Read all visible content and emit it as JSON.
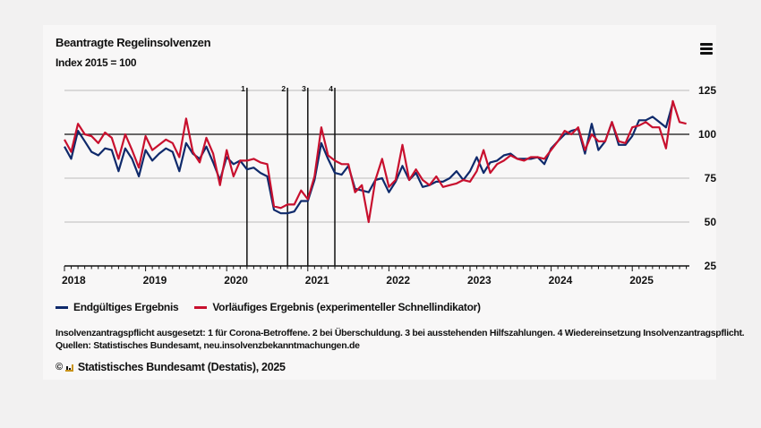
{
  "header": {
    "title": "Beantragte Regelinsolvenzen",
    "subtitle": "Index 2015 = 100",
    "menu_icon": "hamburger-menu-icon"
  },
  "legend": [
    {
      "label": "Endgültiges Ergebnis",
      "color": "#0f2a6b"
    },
    {
      "label": "Vorläufiges Ergebnis (experimenteller Schnellindikator)",
      "color": "#c8102e"
    }
  ],
  "footer": {
    "note": "Insolvenzantragspflicht ausgesetzt: 1 für Corona-Betroffene. 2 bei Überschuldung. 3 bei ausstehenden Hilfszahlungen. 4 Wiedereinsetzung Insolvenzantragspflicht.",
    "sources": "Quellen: Statistisches Bundesamt, neu.insolvenzbekanntmachungen.de",
    "copyright_symbol": "©",
    "copyright": "Statistisches Bundesamt (Destatis), 2025"
  },
  "chart_data": {
    "type": "line",
    "title": "Beantragte Regelinsolvenzen",
    "subtitle": "Index 2015 = 100",
    "xlabel": "",
    "ylabel": "",
    "x_start": "2018-01",
    "x_frequency": "monthly",
    "x_range": [
      "2018-01",
      "2025-10"
    ],
    "x_tick_labels": [
      "2018",
      "2019",
      "2020",
      "2021",
      "2022",
      "2023",
      "2024",
      "2025"
    ],
    "y_ticks": [
      25,
      50,
      75,
      100,
      125
    ],
    "ylim": [
      25,
      125
    ],
    "grid": true,
    "reference_line": 100,
    "y_axis_side": "right",
    "legend_position": "bottom-left",
    "annotations": [
      {
        "label": "1",
        "date": "2020-04"
      },
      {
        "label": "2",
        "date": "2020-10"
      },
      {
        "label": "3",
        "date": "2021-01"
      },
      {
        "label": "4",
        "date": "2021-05"
      }
    ],
    "series": [
      {
        "name": "Endgültiges Ergebnis",
        "color": "#0f2a6b",
        "values": [
          93,
          86,
          102,
          96,
          90,
          88,
          92,
          91,
          79,
          92,
          86,
          76,
          91,
          85,
          89,
          92,
          90,
          79,
          95,
          89,
          86,
          93,
          84,
          74,
          87,
          83,
          85,
          80,
          81,
          78,
          76,
          57,
          55,
          55,
          56,
          62,
          62,
          74,
          95,
          86,
          78,
          77,
          82,
          69,
          68,
          67,
          74,
          75,
          67,
          73,
          82,
          74,
          78,
          70,
          71,
          73,
          73,
          75,
          79,
          74,
          79,
          87,
          78,
          84,
          85,
          88,
          89,
          86,
          86,
          86,
          87,
          83,
          92,
          96,
          100,
          102,
          103,
          89,
          106,
          91,
          96,
          107,
          94,
          94,
          99,
          108,
          108,
          110,
          107,
          104,
          118
        ]
      },
      {
        "name": "Vorläufiges Ergebnis (experimenteller Schnellindikator)",
        "color": "#c8102e",
        "values": [
          97,
          90,
          106,
          100,
          99,
          95,
          101,
          98,
          86,
          100,
          91,
          81,
          99,
          91,
          94,
          97,
          95,
          87,
          109,
          90,
          84,
          98,
          89,
          71,
          91,
          76,
          85,
          85,
          86,
          84,
          83,
          59,
          58,
          60,
          60,
          68,
          63,
          76,
          104,
          88,
          85,
          83,
          83,
          67,
          71,
          50,
          74,
          86,
          70,
          74,
          94,
          74,
          80,
          74,
          71,
          76,
          70,
          71,
          72,
          74,
          73,
          79,
          91,
          78,
          83,
          85,
          88,
          86,
          85,
          87,
          87,
          86,
          91,
          96,
          102,
          100,
          104,
          91,
          100,
          96,
          96,
          107,
          96,
          95,
          104,
          105,
          107,
          104,
          104,
          92,
          119,
          107,
          106
        ]
      }
    ]
  }
}
